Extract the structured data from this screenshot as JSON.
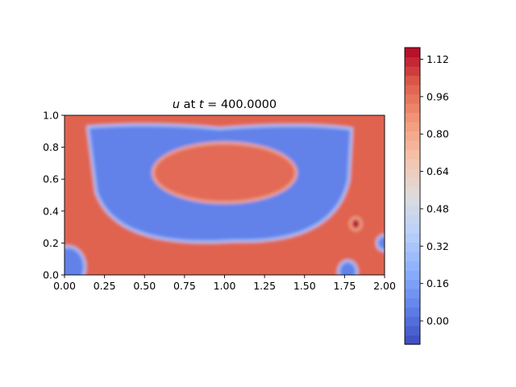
{
  "chart_data": {
    "type": "heatmap",
    "title": {
      "var": "u",
      "mid": " at ",
      "t_var": "t",
      "equals": " = ",
      "value": "400.0000"
    },
    "xlabel": "",
    "ylabel": "",
    "xlim": [
      0.0,
      2.0
    ],
    "ylim": [
      0.0,
      1.0
    ],
    "x_ticks": [
      "0.00",
      "0.25",
      "0.50",
      "0.75",
      "1.00",
      "1.25",
      "1.50",
      "1.75",
      "2.00"
    ],
    "y_ticks": [
      "0.0",
      "0.2",
      "0.4",
      "0.6",
      "0.8",
      "1.0"
    ],
    "colorbar": {
      "colormap": "coolwarm",
      "range": [
        -0.1,
        1.17
      ],
      "ticks": [
        "0.00",
        "0.16",
        "0.32",
        "0.48",
        "0.64",
        "0.80",
        "0.96",
        "1.12"
      ],
      "tick_values": [
        0.0,
        0.16,
        0.32,
        0.48,
        0.64,
        0.8,
        0.96,
        1.12
      ],
      "levels": 32
    },
    "field": {
      "background_value": 1.0,
      "regions": [
        {
          "name": "outer-well",
          "shape": "rounded-u",
          "x_range": [
            0.12,
            1.82
          ],
          "y_range": [
            0.18,
            0.94
          ],
          "value": 0.06
        },
        {
          "name": "inner-island",
          "shape": "ellipse",
          "center": [
            1.0,
            0.64
          ],
          "radii": [
            0.44,
            0.18
          ],
          "value": 0.98
        },
        {
          "name": "bottom-left-corner",
          "shape": "blob",
          "center": [
            0.02,
            0.05
          ],
          "radii": [
            0.1,
            0.12
          ],
          "value": 0.06
        },
        {
          "name": "bottom-right-notch",
          "shape": "blob",
          "center": [
            1.77,
            0.02
          ],
          "radii": [
            0.05,
            0.06
          ],
          "value": 0.06
        },
        {
          "name": "right-edge-notch",
          "shape": "blob",
          "center": [
            2.0,
            0.2
          ],
          "radii": [
            0.04,
            0.04
          ],
          "value": 0.06
        },
        {
          "name": "hot-spot",
          "shape": "blob",
          "center": [
            1.82,
            0.32
          ],
          "radii": [
            0.025,
            0.03
          ],
          "value": 1.14
        }
      ]
    }
  }
}
